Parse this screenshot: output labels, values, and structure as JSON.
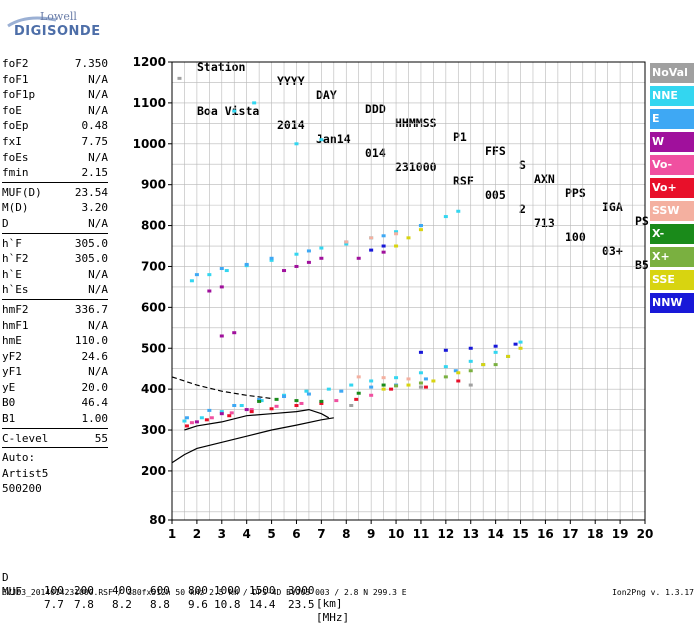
{
  "logo": {
    "top": "Lowell",
    "main": "DIGISONDE"
  },
  "header": {
    "labels": [
      "Station",
      "YYYY",
      "DAY",
      "DDD",
      "HHMMSS",
      "P1",
      "FFS",
      "S",
      "AXN",
      "PPS",
      "IGA",
      "PS"
    ],
    "values": [
      "Boa Vista",
      "2014",
      "Jan14",
      "014",
      "231000",
      "RSF",
      "005",
      "2",
      "713",
      "100",
      "03+",
      "B5"
    ]
  },
  "params": {
    "group1": [
      {
        "label": "foF2",
        "value": "7.350"
      },
      {
        "label": "foF1",
        "value": "N/A"
      },
      {
        "label": "foF1p",
        "value": "N/A"
      },
      {
        "label": "foE",
        "value": "N/A"
      },
      {
        "label": "foEp",
        "value": "0.48"
      },
      {
        "label": "fxI",
        "value": "7.75"
      },
      {
        "label": "foEs",
        "value": "N/A"
      },
      {
        "label": "fmin",
        "value": "2.15"
      }
    ],
    "group2": [
      {
        "label": "MUF(D)",
        "value": "23.54"
      },
      {
        "label": "M(D)",
        "value": "3.20"
      },
      {
        "label": "D",
        "value": "N/A"
      }
    ],
    "group3": [
      {
        "label": "h`F",
        "value": "305.0"
      },
      {
        "label": "h`F2",
        "value": "305.0"
      },
      {
        "label": "h`E",
        "value": "N/A"
      },
      {
        "label": "h`Es",
        "value": "N/A"
      }
    ],
    "group4": [
      {
        "label": "hmF2",
        "value": "336.7"
      },
      {
        "label": "hmF1",
        "value": "N/A"
      },
      {
        "label": "hmE",
        "value": "110.0"
      },
      {
        "label": "yF2",
        "value": "24.6"
      },
      {
        "label": "yF1",
        "value": "N/A"
      },
      {
        "label": "yE",
        "value": "20.0"
      },
      {
        "label": "B0",
        "value": "46.4"
      },
      {
        "label": "B1",
        "value": "1.00"
      }
    ],
    "group5": [
      {
        "label": "C-level",
        "value": "55"
      }
    ],
    "auto_lines": [
      "Auto:",
      "Artist5",
      "500200"
    ]
  },
  "legend": [
    {
      "name": "NoVal",
      "color": "#a0a0a0"
    },
    {
      "name": "NNE",
      "color": "#33d6f0"
    },
    {
      "name": "E",
      "color": "#3ea8f4"
    },
    {
      "name": "W",
      "color": "#a0109c"
    },
    {
      "name": "Vo-",
      "color": "#f050a0"
    },
    {
      "name": "Vo+",
      "color": "#e8102a"
    },
    {
      "name": "SSW",
      "color": "#f4b0a0"
    },
    {
      "name": "X-",
      "color": "#1a8a1a"
    },
    {
      "name": "X+",
      "color": "#7ab040"
    },
    {
      "name": "SSE",
      "color": "#d8d410"
    },
    {
      "name": "NNW",
      "color": "#1818d8"
    }
  ],
  "scale": {
    "d_label": "D",
    "d_values": [
      "100",
      "200",
      "400",
      "600",
      "800",
      "1000",
      "1500",
      "3000"
    ],
    "d_unit": "[km]",
    "muf_label": "MUF",
    "muf_values": [
      "7.7",
      "7.8",
      "8.2",
      "8.8",
      "9.6",
      "10.8",
      "14.4",
      "23.5"
    ],
    "muf_unit": "[MHz]"
  },
  "footer": {
    "left": "BVJ03_2014014231000.RSF / 380fx512h 50 kHz 2.5 km / DPS-4D BVJ03 003 / 2.8 N 299.3 E",
    "right": "Ion2Png v. 1.3.17"
  },
  "chart_data": {
    "type": "scatter",
    "x_ticks": [
      1,
      2,
      3,
      4,
      5,
      6,
      7,
      8,
      9,
      10,
      11,
      12,
      13,
      14,
      15,
      16,
      17,
      18,
      19,
      20
    ],
    "y_ticks": [
      80,
      200,
      300,
      400,
      500,
      600,
      700,
      800,
      900,
      1000,
      1100,
      1200
    ],
    "xlim": [
      1,
      20
    ],
    "ylim": [
      80,
      1200
    ],
    "grid": true,
    "legend_position": "right",
    "series": [
      {
        "name": "NNE",
        "color": "#33d6f0",
        "points": [
          [
            1.5,
            322
          ],
          [
            2.2,
            330
          ],
          [
            3.0,
            345
          ],
          [
            3.8,
            360
          ],
          [
            4.6,
            372
          ],
          [
            5.5,
            385
          ],
          [
            6.4,
            395
          ],
          [
            7.3,
            400
          ],
          [
            8.2,
            410
          ],
          [
            9.0,
            420
          ],
          [
            10.0,
            428
          ],
          [
            11.0,
            440
          ],
          [
            12.0,
            455
          ],
          [
            13.0,
            468
          ],
          [
            14.0,
            490
          ],
          [
            15.0,
            515
          ],
          [
            1.8,
            665
          ],
          [
            2.5,
            680
          ],
          [
            3.2,
            690
          ],
          [
            4.0,
            702
          ],
          [
            5.0,
            715
          ],
          [
            6.0,
            730
          ],
          [
            7.0,
            745
          ],
          [
            8.0,
            755
          ],
          [
            9.0,
            770
          ],
          [
            10.0,
            785
          ],
          [
            11.0,
            800
          ],
          [
            12.0,
            822
          ],
          [
            12.5,
            835
          ],
          [
            6.0,
            1000
          ],
          [
            7.0,
            1010
          ],
          [
            3.5,
            1080
          ],
          [
            4.3,
            1100
          ]
        ]
      },
      {
        "name": "E",
        "color": "#3ea8f4",
        "points": [
          [
            1.6,
            330
          ],
          [
            2.5,
            348
          ],
          [
            3.5,
            360
          ],
          [
            4.5,
            375
          ],
          [
            5.5,
            382
          ],
          [
            6.5,
            388
          ],
          [
            7.8,
            395
          ],
          [
            9.0,
            405
          ],
          [
            10.0,
            410
          ],
          [
            11.2,
            425
          ],
          [
            12.4,
            445
          ],
          [
            13.5,
            460
          ],
          [
            14.5,
            480
          ],
          [
            2.0,
            680
          ],
          [
            3.0,
            695
          ],
          [
            4.0,
            705
          ],
          [
            5.0,
            720
          ],
          [
            6.5,
            738
          ],
          [
            8.0,
            760
          ],
          [
            9.5,
            775
          ],
          [
            11.0,
            800
          ]
        ]
      },
      {
        "name": "W",
        "color": "#a0109c",
        "points": [
          [
            3.0,
            530
          ],
          [
            3.5,
            538
          ],
          [
            2.5,
            640
          ],
          [
            3.0,
            650
          ],
          [
            5.5,
            690
          ],
          [
            6.0,
            700
          ],
          [
            6.5,
            710
          ],
          [
            7.0,
            720
          ],
          [
            8.5,
            720
          ],
          [
            9.5,
            735
          ],
          [
            2.0,
            320
          ],
          [
            3.0,
            340
          ],
          [
            4.0,
            350
          ]
        ]
      },
      {
        "name": "Vo-",
        "color": "#f050a0",
        "points": [
          [
            1.8,
            318
          ],
          [
            2.6,
            330
          ],
          [
            3.4,
            342
          ],
          [
            4.2,
            350
          ],
          [
            5.2,
            358
          ],
          [
            6.2,
            365
          ],
          [
            7.6,
            372
          ],
          [
            9.0,
            385
          ]
        ]
      },
      {
        "name": "Vo+",
        "color": "#e8102a",
        "points": [
          [
            1.6,
            310
          ],
          [
            2.4,
            325
          ],
          [
            3.3,
            335
          ],
          [
            4.2,
            345
          ],
          [
            5.0,
            352
          ],
          [
            6.0,
            360
          ],
          [
            7.0,
            365
          ],
          [
            8.4,
            375
          ],
          [
            9.8,
            400
          ],
          [
            11.2,
            405
          ],
          [
            12.5,
            420
          ]
        ]
      },
      {
        "name": "SSW",
        "color": "#f4b0a0",
        "points": [
          [
            8.5,
            430
          ],
          [
            9.5,
            428
          ],
          [
            10.5,
            425
          ],
          [
            8.0,
            760
          ],
          [
            9.0,
            770
          ],
          [
            10.0,
            780
          ]
        ]
      },
      {
        "name": "X-",
        "color": "#1a8a1a",
        "points": [
          [
            4.5,
            370
          ],
          [
            5.2,
            375
          ],
          [
            6.0,
            372
          ],
          [
            7.0,
            370
          ],
          [
            8.5,
            390
          ],
          [
            9.5,
            410
          ]
        ]
      },
      {
        "name": "X+",
        "color": "#7ab040",
        "points": [
          [
            10.0,
            408
          ],
          [
            11.0,
            415
          ],
          [
            12.0,
            430
          ],
          [
            13.0,
            445
          ],
          [
            14.0,
            460
          ]
        ]
      },
      {
        "name": "SSE",
        "color": "#d8d410",
        "points": [
          [
            9.5,
            400
          ],
          [
            10.5,
            410
          ],
          [
            11.5,
            420
          ],
          [
            12.5,
            440
          ],
          [
            13.5,
            460
          ],
          [
            14.5,
            480
          ],
          [
            15.0,
            500
          ],
          [
            10.0,
            750
          ],
          [
            10.5,
            770
          ],
          [
            11.0,
            790
          ]
        ]
      },
      {
        "name": "NNW",
        "color": "#1818d8",
        "points": [
          [
            11.0,
            490
          ],
          [
            12.0,
            495
          ],
          [
            13.0,
            500
          ],
          [
            14.0,
            505
          ],
          [
            14.8,
            510
          ],
          [
            9.0,
            740
          ],
          [
            9.5,
            750
          ]
        ]
      },
      {
        "name": "NoVal",
        "color": "#a0a0a0",
        "points": [
          [
            1.3,
            1160
          ],
          [
            8.2,
            360
          ],
          [
            11.0,
            405
          ],
          [
            13.0,
            410
          ]
        ]
      }
    ],
    "trace_dashed": [
      [
        1,
        430
      ],
      [
        2,
        410
      ],
      [
        3,
        395
      ],
      [
        4,
        385
      ],
      [
        5,
        377
      ]
    ],
    "trace_solid_lower": [
      [
        1,
        220
      ],
      [
        1.5,
        240
      ],
      [
        2,
        255
      ],
      [
        3,
        270
      ],
      [
        4,
        285
      ],
      [
        5,
        300
      ],
      [
        6,
        312
      ],
      [
        7,
        325
      ],
      [
        7.5,
        330
      ]
    ],
    "trace_solid_upper": [
      [
        1.5,
        300
      ],
      [
        2,
        310
      ],
      [
        3,
        320
      ],
      [
        4,
        335
      ],
      [
        5,
        340
      ],
      [
        6,
        345
      ],
      [
        6.5,
        350
      ],
      [
        7,
        340
      ],
      [
        7.3,
        330
      ]
    ]
  }
}
